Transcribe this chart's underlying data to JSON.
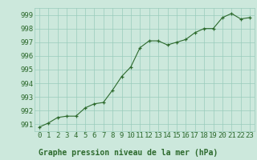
{
  "title": "Graphe pression niveau de la mer (hPa)",
  "x_values": [
    0,
    1,
    2,
    3,
    4,
    5,
    6,
    7,
    8,
    9,
    10,
    11,
    12,
    13,
    14,
    15,
    16,
    17,
    18,
    19,
    20,
    21,
    22,
    23
  ],
  "y_values": [
    990.8,
    991.1,
    991.5,
    991.6,
    991.6,
    992.2,
    992.5,
    992.6,
    993.5,
    994.5,
    995.2,
    996.6,
    997.1,
    997.1,
    996.8,
    997.0,
    997.2,
    997.7,
    998.0,
    998.0,
    998.8,
    999.1,
    998.7,
    998.8
  ],
  "ylim": [
    990.5,
    999.5
  ],
  "xlim": [
    -0.5,
    23.5
  ],
  "yticks": [
    991,
    992,
    993,
    994,
    995,
    996,
    997,
    998,
    999
  ],
  "xticks": [
    0,
    1,
    2,
    3,
    4,
    5,
    6,
    7,
    8,
    9,
    10,
    11,
    12,
    13,
    14,
    15,
    16,
    17,
    18,
    19,
    20,
    21,
    22,
    23
  ],
  "line_color": "#2d6a2d",
  "marker_color": "#2d6a2d",
  "bg_color": "#cce8dc",
  "grid_color": "#99ccbb",
  "tick_label_color": "#2d6a2d",
  "title_color": "#2d6a2d",
  "title_fontsize": 7.0,
  "tick_fontsize": 6.5
}
